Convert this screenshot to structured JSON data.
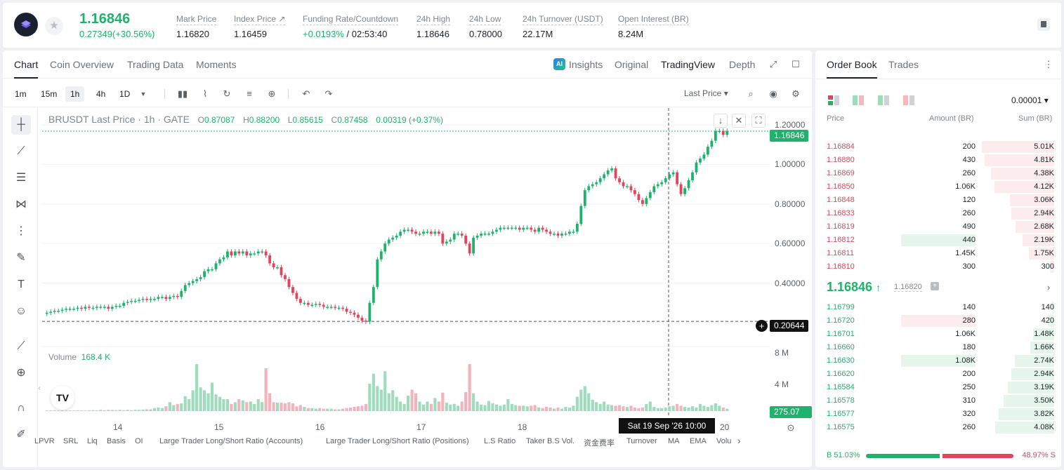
{
  "ticker": {
    "last_price": "1.16846",
    "change": "0.27349(+30.56%)",
    "stats": [
      {
        "label": "Mark Price",
        "value": "1.16820"
      },
      {
        "label": "Index Price ↗",
        "value": "1.16459"
      },
      {
        "label": "Funding Rate/Countdown",
        "value_green": "+0.0193%",
        "value": " / 02:53:40"
      },
      {
        "label": "24h High",
        "value": "1.18646"
      },
      {
        "label": "24h Low",
        "value": "0.78000"
      },
      {
        "label": "24h Turnover (USDT)",
        "value": "22.17M"
      },
      {
        "label": "Open Interest (BR)",
        "value": "8.24M"
      }
    ]
  },
  "chart_tabs": [
    "Chart",
    "Coin Overview",
    "Trading Data",
    "Moments"
  ],
  "chart_views": [
    "Insights",
    "Original",
    "TradingView",
    "Depth"
  ],
  "ai_badge": "AI",
  "intervals": [
    "1m",
    "15m",
    "1h",
    "4h",
    "1D"
  ],
  "price_source": "Last Price",
  "legend": {
    "title": "BRUSDT Last Price · 1h · GATE",
    "open_k": "O",
    "open": "0.87087",
    "high_k": "H",
    "high": "0.88200",
    "low_k": "L",
    "low": "0.85615",
    "close_k": "C",
    "close": "0.87458",
    "change": "0.00319 (+0.37%)"
  },
  "volume_legend": {
    "label": "Volume",
    "value": "168.4 K"
  },
  "price_tag": "1.16846",
  "crosshair_price": "0.20644",
  "volume_tag": "275.07 K",
  "time_tag": "Sat 19 Sep '26   10:00",
  "tv_logo": "TV",
  "indicators": [
    "LPVR",
    "SRL",
    "Liq",
    "Basis",
    "OI",
    "Large Trader Long/Short Ratio (Accounts)",
    "Large Trader Long/Short Ratio (Positions)",
    "L.S Ratio",
    "Taker B.S Vol.",
    "资金费率",
    "Turnover",
    "MA",
    "EMA",
    "Volu"
  ],
  "chart_data": {
    "type": "candlestick",
    "y_axis": {
      "ticks": [
        "1.20000",
        "1.00000",
        "0.80000",
        "0.60000",
        "0.40000"
      ],
      "range": [
        0.15,
        1.25
      ]
    },
    "volume_axis": {
      "ticks": [
        "8 M",
        "4 M"
      ]
    },
    "x_axis": {
      "ticks": [
        "14",
        "15",
        "16",
        "17",
        "18",
        "20"
      ]
    },
    "candles": [
      0.25,
      0.255,
      0.26,
      0.26,
      0.265,
      0.27,
      0.27,
      0.27,
      0.275,
      0.27,
      0.28,
      0.275,
      0.275,
      0.28,
      0.28,
      0.28,
      0.27,
      0.28,
      0.285,
      0.285,
      0.3,
      0.305,
      0.31,
      0.31,
      0.315,
      0.32,
      0.315,
      0.32,
      0.32,
      0.33,
      0.33,
      0.32,
      0.33,
      0.335,
      0.33,
      0.36,
      0.39,
      0.4,
      0.41,
      0.42,
      0.43,
      0.46,
      0.47,
      0.47,
      0.5,
      0.52,
      0.53,
      0.56,
      0.54,
      0.56,
      0.55,
      0.56,
      0.54,
      0.55,
      0.55,
      0.56,
      0.56,
      0.54,
      0.5,
      0.48,
      0.48,
      0.44,
      0.42,
      0.38,
      0.35,
      0.32,
      0.3,
      0.3,
      0.29,
      0.29,
      0.295,
      0.29,
      0.28,
      0.28,
      0.28,
      0.275,
      0.275,
      0.27,
      0.255,
      0.25,
      0.24,
      0.225,
      0.21,
      0.205,
      0.3,
      0.38,
      0.52,
      0.56,
      0.6,
      0.62,
      0.63,
      0.64,
      0.66,
      0.67,
      0.67,
      0.66,
      0.65,
      0.65,
      0.66,
      0.66,
      0.65,
      0.66,
      0.65,
      0.6,
      0.61,
      0.62,
      0.65,
      0.65,
      0.64,
      0.6,
      0.55,
      0.63,
      0.64,
      0.65,
      0.65,
      0.65,
      0.66,
      0.67,
      0.68,
      0.68,
      0.68,
      0.68,
      0.68,
      0.67,
      0.68,
      0.68,
      0.67,
      0.66,
      0.68,
      0.67,
      0.66,
      0.65,
      0.65,
      0.64,
      0.65,
      0.65,
      0.66,
      0.66,
      0.7,
      0.79,
      0.87,
      0.89,
      0.9,
      0.91,
      0.93,
      0.95,
      0.97,
      0.98,
      0.93,
      0.91,
      0.89,
      0.89,
      0.87,
      0.85,
      0.82,
      0.8,
      0.83,
      0.86,
      0.89,
      0.9,
      0.91,
      0.93,
      0.95,
      0.96,
      0.9,
      0.85,
      0.88,
      0.92,
      0.96,
      1.01,
      1.03,
      1.05,
      1.09,
      1.12,
      1.17,
      1.17,
      1.15,
      1.17
    ],
    "volumes": [
      0.1,
      0.12,
      0.15,
      0.1,
      0.12,
      0.1,
      0.1,
      0.1,
      0.12,
      0.1,
      0.1,
      0.12,
      0.15,
      0.12,
      0.2,
      0.15,
      0.2,
      0.18,
      0.15,
      0.2,
      0.15,
      0.2,
      0.15,
      0.2,
      0.2,
      0.25,
      0.3,
      0.3,
      0.5,
      0.6,
      0.5,
      0.8,
      1.5,
      1.0,
      1.2,
      1.3,
      2.5,
      2.0,
      3.5,
      7.9,
      4.0,
      3.5,
      3.0,
      4.8,
      2.8,
      2.4,
      2.0,
      2.0,
      1.2,
      1.5,
      2.0,
      1.8,
      1.5,
      1.6,
      1.2,
      2.0,
      1.5,
      7.2,
      3.0,
      1.5,
      1.4,
      1.4,
      1.3,
      1.5,
      1.3,
      0.8,
      1.0,
      0.7,
      0.5,
      0.5,
      0.4,
      0.5,
      0.4,
      0.4,
      0.4,
      0.3,
      0.3,
      0.4,
      0.5,
      0.6,
      0.7,
      0.8,
      0.9,
      1.2,
      4.6,
      6.3,
      4.2,
      3.6,
      6.7,
      3.0,
      3.5,
      2.4,
      1.6,
      1.2,
      2.6,
      3.6,
      3.0,
      1.6,
      1.1,
      1.6,
      1.2,
      2.2,
      1.6,
      3.1,
      1.4,
      1.1,
      1.2,
      0.9,
      1.6,
      3.2,
      7.9,
      3.0,
      1.6,
      1.1,
      1.0,
      1.7,
      1.3,
      1.1,
      0.9,
      1.1,
      2.0,
      1.2,
      1.0,
      0.9,
      0.9,
      0.8,
      0.9,
      1.0,
      0.6,
      0.5,
      0.7,
      0.6,
      0.4,
      0.6,
      0.4,
      0.7,
      0.6,
      0.9,
      2.4,
      3.6,
      4.2,
      3.0,
      1.9,
      1.5,
      1.2,
      1.6,
      1.1,
      1.0,
      0.9,
      1.0,
      0.8,
      0.7,
      0.9,
      0.6,
      0.5,
      0.6,
      1.2,
      1.6,
      0.7,
      0.5,
      0.5,
      0.6,
      0.8,
      0.9,
      1.2,
      0.9,
      0.7,
      0.6,
      0.8,
      0.6,
      1.2,
      0.9,
      0.7,
      1.0,
      1.3,
      0.9,
      0.6,
      0.4
    ]
  },
  "order_book": {
    "tabs": [
      "Order Book",
      "Trades"
    ],
    "precision": "0.00001",
    "headers": {
      "price": "Price",
      "amount": "Amount (BR)",
      "sum": "Sum (BR)"
    },
    "asks": [
      {
        "price": "1.16884",
        "amount": "200",
        "sum": "5.01K"
      },
      {
        "price": "1.16880",
        "amount": "430",
        "sum": "4.81K"
      },
      {
        "price": "1.16869",
        "amount": "260",
        "sum": "4.38K"
      },
      {
        "price": "1.16850",
        "amount": "1.06K",
        "sum": "4.12K"
      },
      {
        "price": "1.16848",
        "amount": "120",
        "sum": "3.06K"
      },
      {
        "price": "1.16833",
        "amount": "260",
        "sum": "2.94K"
      },
      {
        "price": "1.16819",
        "amount": "490",
        "sum": "2.68K"
      },
      {
        "price": "1.16812",
        "amount": "440",
        "sum": "2.19K"
      },
      {
        "price": "1.16811",
        "amount": "1.45K",
        "sum": "1.75K"
      },
      {
        "price": "1.16810",
        "amount": "300",
        "sum": "300"
      }
    ],
    "mid_price": "1.16846",
    "mid_arrow": "↑",
    "mark_price": "1.16820",
    "bids": [
      {
        "price": "1.16799",
        "amount": "140",
        "sum": "140"
      },
      {
        "price": "1.16720",
        "amount": "280",
        "sum": "420"
      },
      {
        "price": "1.16701",
        "amount": "1.06K",
        "sum": "1.48K"
      },
      {
        "price": "1.16660",
        "amount": "180",
        "sum": "1.66K"
      },
      {
        "price": "1.16630",
        "amount": "1.08K",
        "sum": "2.74K"
      },
      {
        "price": "1.16620",
        "amount": "200",
        "sum": "2.94K"
      },
      {
        "price": "1.16584",
        "amount": "250",
        "sum": "3.19K"
      },
      {
        "price": "1.16578",
        "amount": "310",
        "sum": "3.50K"
      },
      {
        "price": "1.16577",
        "amount": "320",
        "sum": "3.82K"
      },
      {
        "price": "1.16575",
        "amount": "260",
        "sum": "4.08K"
      }
    ],
    "buy_ratio": "B 51.03%",
    "sell_ratio": "48.97% S",
    "buy_fraction": 0.5103
  },
  "colors": {
    "up": "#20b26c",
    "down": "#e0455b"
  }
}
